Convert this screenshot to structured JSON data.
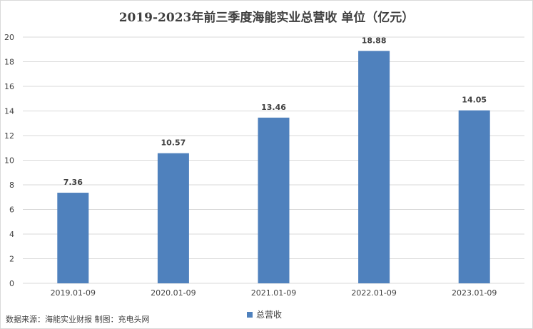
{
  "chart_data": {
    "type": "bar",
    "title": "2019-2023年前三季度海能实业总营收 单位（亿元）",
    "categories": [
      "2019.01-09",
      "2020.01-09",
      "2021.01-09",
      "2022.01-09",
      "2023.01-09"
    ],
    "series": [
      {
        "name": "总营收",
        "values": [
          7.36,
          10.57,
          13.46,
          18.88,
          14.05
        ],
        "data_labels": [
          "7.36",
          "10.57",
          "13.46",
          "18.88",
          "14.05"
        ]
      }
    ],
    "y_ticks": [
      "0",
      "2",
      "4",
      "6",
      "8",
      "10",
      "12",
      "14",
      "16",
      "18",
      "20"
    ],
    "ylim": [
      0,
      20
    ],
    "grid": true,
    "legend": "bottom"
  },
  "colors": {
    "bar": "#4f81bd",
    "grid": "#d9d9d9",
    "text": "#404040"
  },
  "source_note": "数据来源：海能实业财报 制图：充电头网"
}
